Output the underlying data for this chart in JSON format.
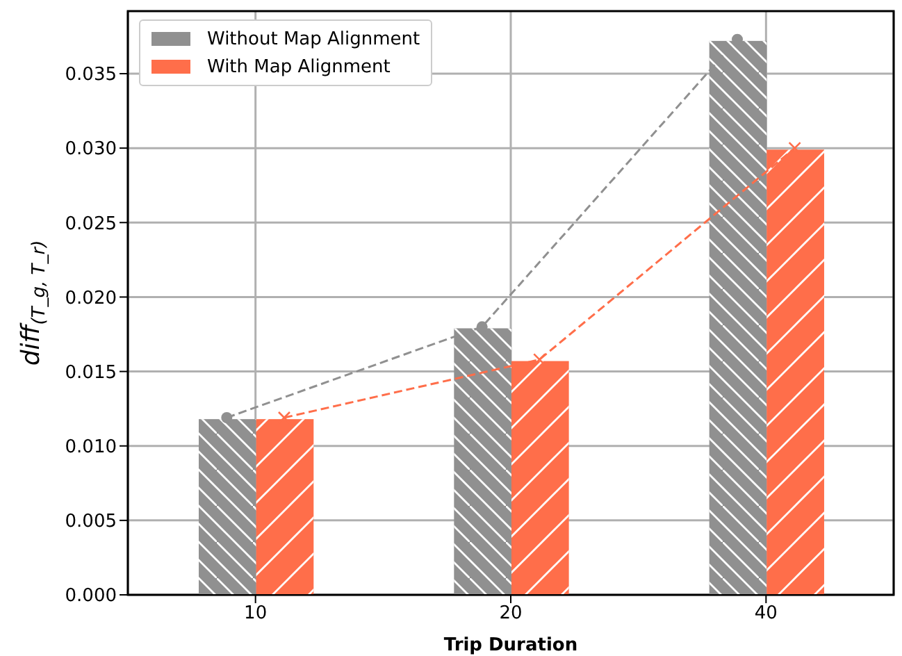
{
  "chart_data": {
    "type": "bar",
    "xlabel": "Trip Duration",
    "ylabel": "diff$_{(T_g, T_r)}$",
    "categories": [
      "10",
      "20",
      "40"
    ],
    "series": [
      {
        "name": "Without Map Alignment",
        "color": "#909090",
        "values": [
          0.0118,
          0.0179,
          0.0372
        ]
      },
      {
        "name": "With Map Alignment",
        "color": "#ff6e4a",
        "values": [
          0.0118,
          0.0157,
          0.0299
        ]
      },
      {
        "type": "line",
        "color": "#909090",
        "values": [
          0.0119,
          0.018,
          0.0373
        ],
        "marker": "circle",
        "line_style": "dashed"
      },
      {
        "type": "line",
        "color": "#ff6e4a",
        "values": [
          0.0119,
          0.0158,
          0.03
        ],
        "marker": "cross",
        "line_style": "dashed"
      }
    ],
    "ylim": [
      0,
      0.0392
    ],
    "yticks": [
      {
        "value": 0,
        "label": "0.000"
      },
      {
        "value": 0.005,
        "label": "0.005"
      },
      {
        "value": 0.01,
        "label": "0.010"
      },
      {
        "value": 0.015,
        "label": "0.015"
      },
      {
        "value": 0.02,
        "label": "0.020"
      },
      {
        "value": 0.025,
        "label": "0.025"
      },
      {
        "value": 0.03,
        "label": "0.030"
      },
      {
        "value": 0.035,
        "label": "0.035"
      }
    ],
    "grid": true,
    "legend": "top left"
  }
}
